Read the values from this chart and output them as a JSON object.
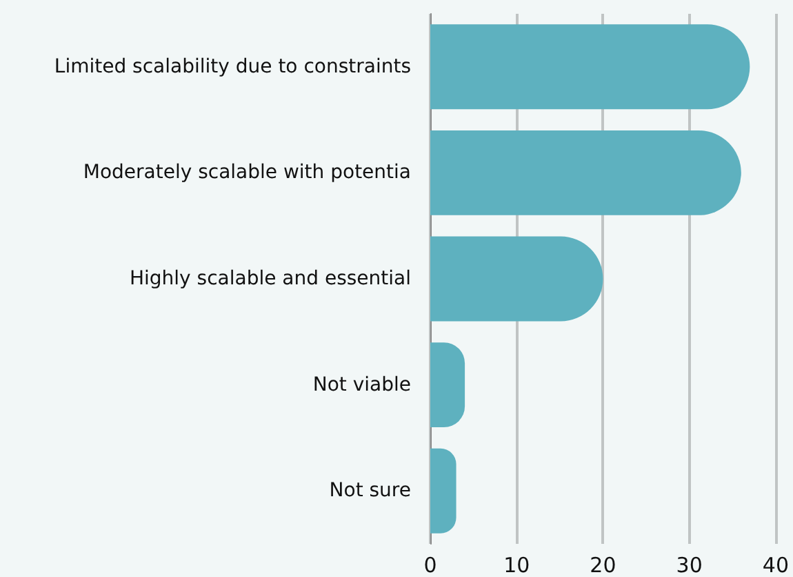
{
  "chart_data": {
    "type": "bar",
    "orientation": "horizontal",
    "categories": [
      "Limited scalability due to constraints",
      "Moderately scalable with potentia",
      "Highly scalable and essential",
      "Not viable",
      "Not sure"
    ],
    "values": [
      37,
      36,
      20,
      4,
      3
    ],
    "color": "#5eb1bf",
    "xlim": [
      0,
      40
    ],
    "xticks": [
      0,
      10,
      20,
      30,
      40
    ],
    "grid": "x"
  }
}
